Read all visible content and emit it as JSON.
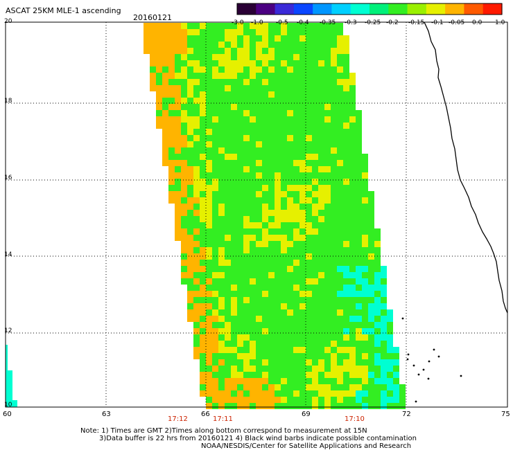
{
  "header": {
    "title": "ASCAT 25KM MLE-1 ascending",
    "date": "20160121"
  },
  "colorbar": {
    "ticks": [
      "-3.0",
      "-1.0",
      "-0.5",
      "-0.4",
      "-0.35",
      "-0.3",
      "-0.25",
      "-0.2",
      "-0.15",
      "-0.1",
      "-0.05",
      "0.0",
      "1.0"
    ],
    "colors": [
      "#2a0035",
      "#4b0082",
      "#3a2ad8",
      "#0a46ff",
      "#0096ff",
      "#00d0ff",
      "#00ffd2",
      "#00f07a",
      "#33ee22",
      "#9af000",
      "#e6f000",
      "#ffb400",
      "#ff5a00",
      "#ff1a00"
    ]
  },
  "axes": {
    "y_labels": [
      "20",
      "18",
      "16",
      "14",
      "12",
      "10"
    ],
    "x_labels": [
      "60",
      "63",
      "66",
      "69",
      "72",
      "75"
    ],
    "time_labels": [
      "17:12",
      "17:11",
      "17:10"
    ]
  },
  "notes": {
    "line1": "Note: 1) Times are GMT 2)Times along bottom correspond to measurement at 15N",
    "line2": "3)Data buffer is 22 hrs from 20160121 4) Black wind barbs indicate possible contamination",
    "line3": "NOAA/NESDIS/Center for Satellite Applications and Research"
  },
  "colors": {
    "swath_green": "#33ee22",
    "swath_yellow": "#e6f000",
    "swath_orange": "#ffb400",
    "swath_cyan": "#00ffd2",
    "coastline": "#000000",
    "time_label": "#cc2200"
  }
}
